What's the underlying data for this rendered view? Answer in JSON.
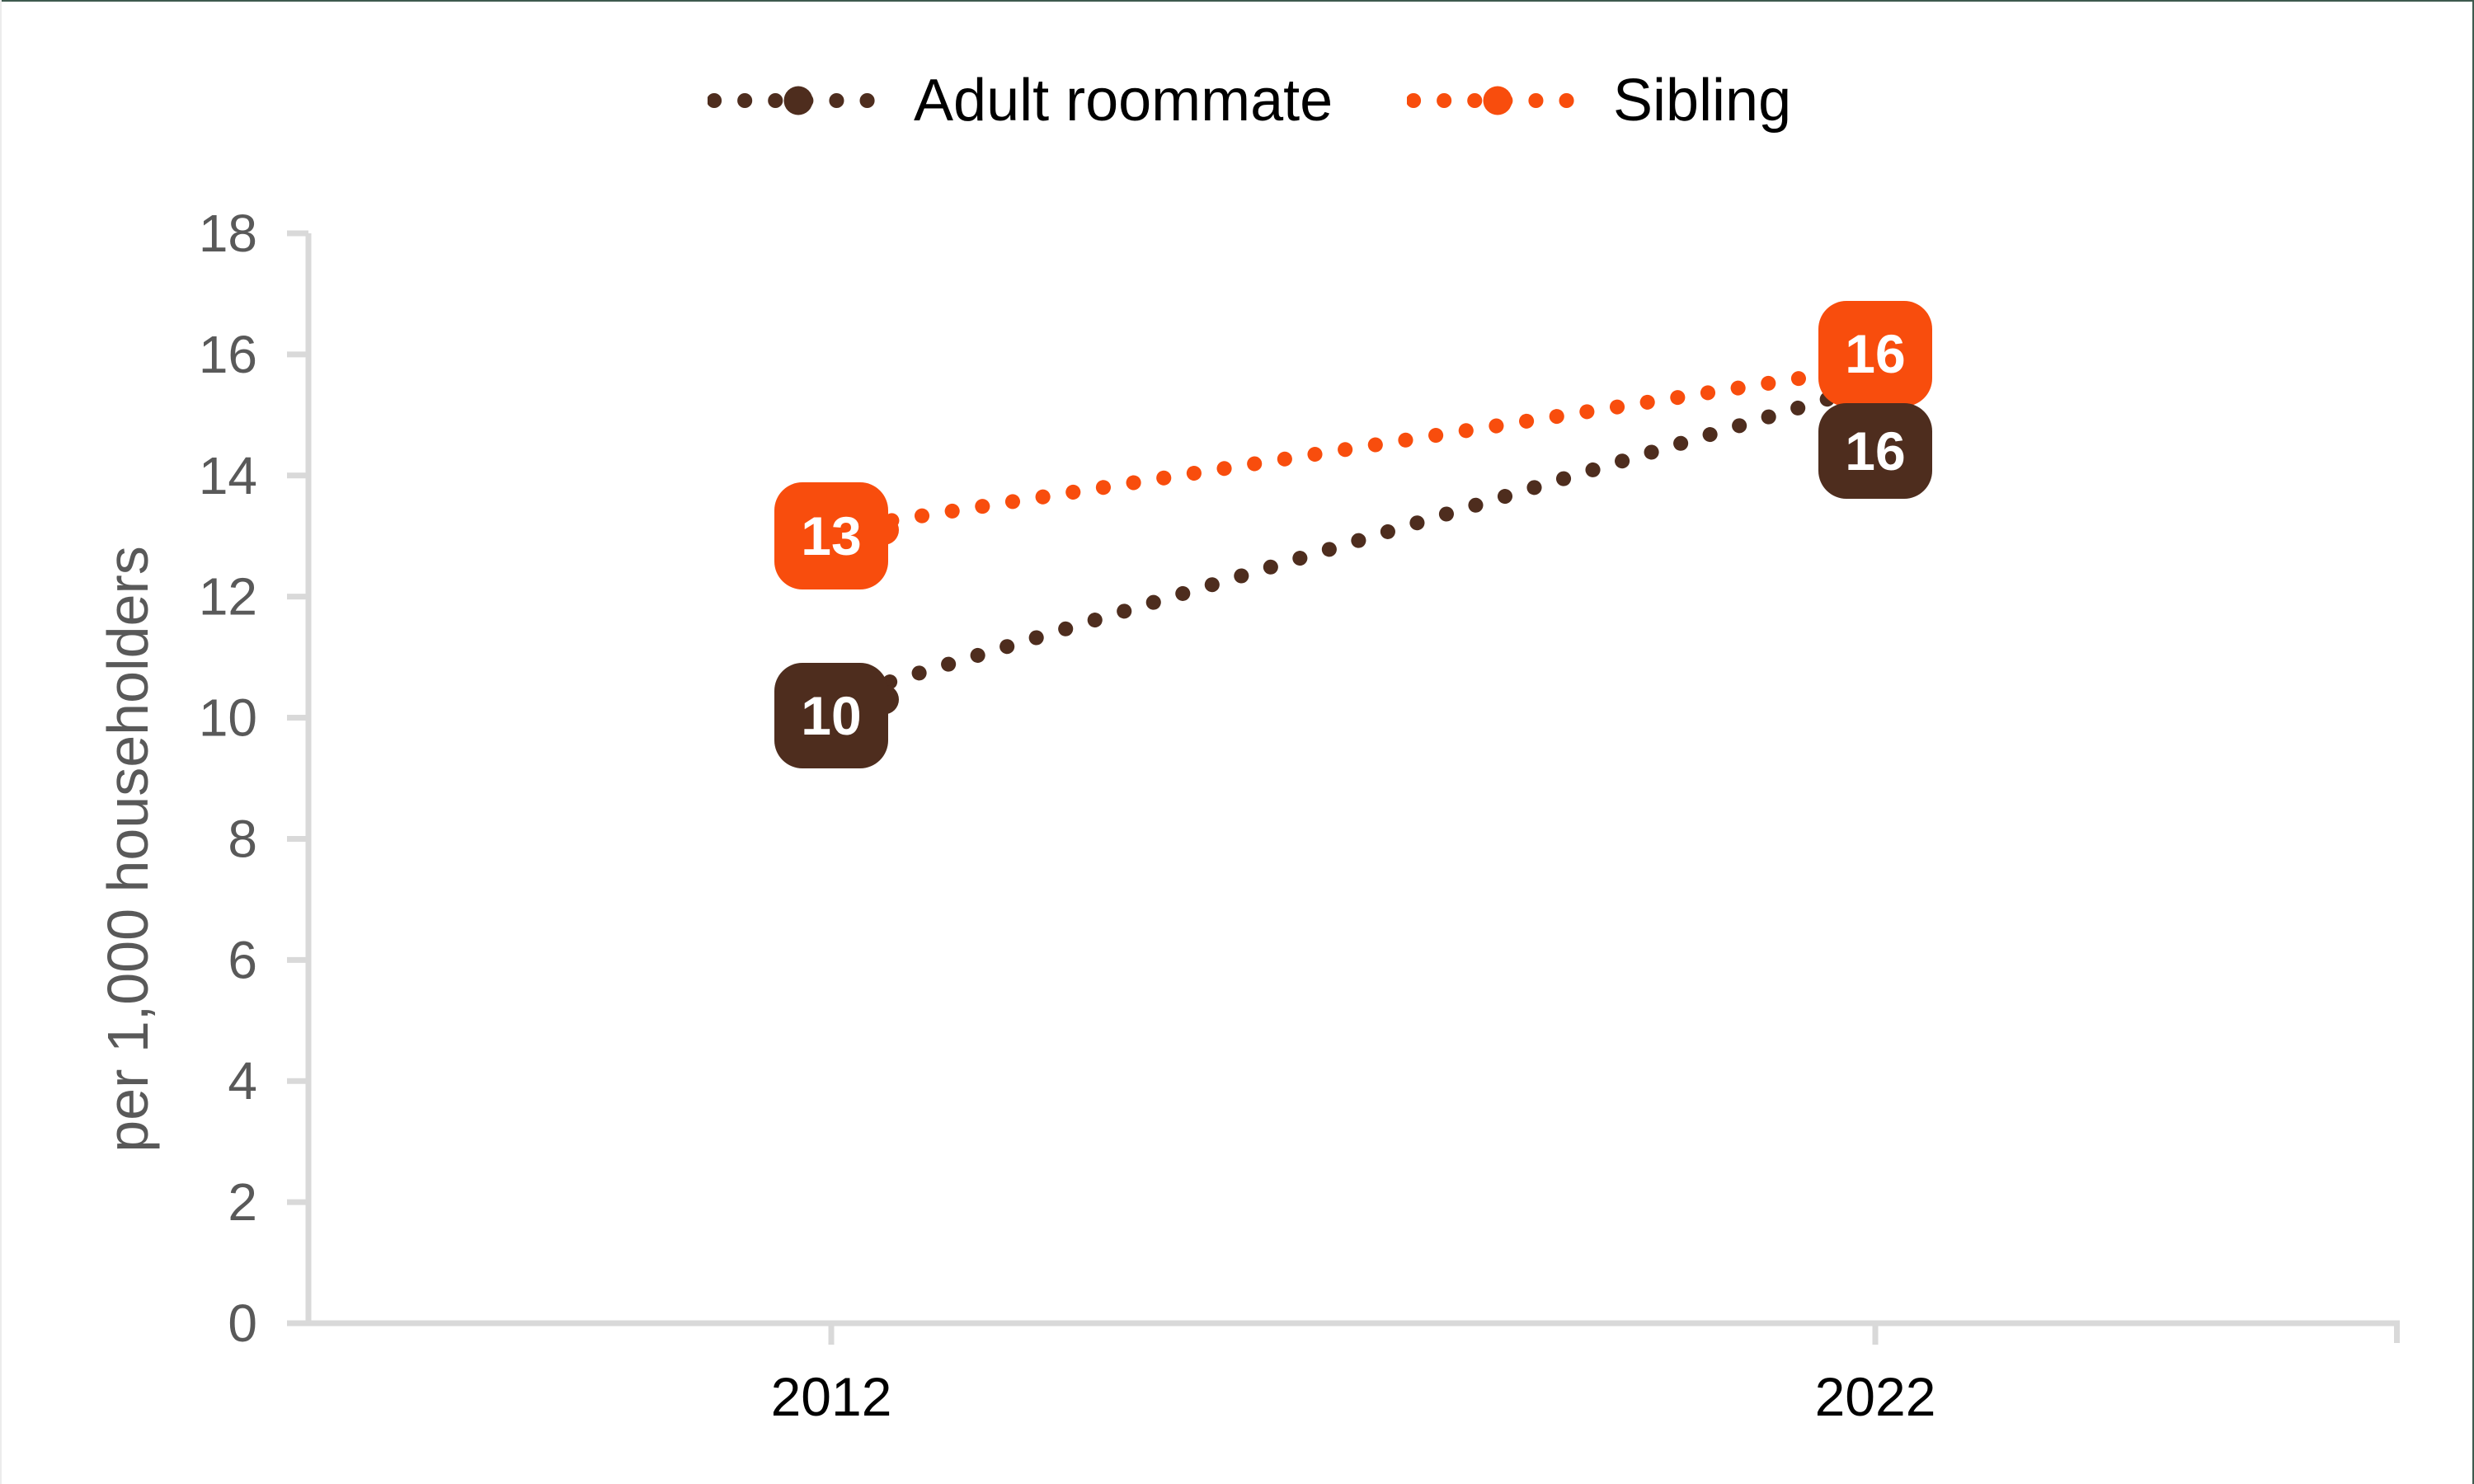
{
  "chart_data": {
    "type": "line",
    "line_style": "dotted",
    "title": "",
    "categories": [
      "2012",
      "2022"
    ],
    "series": [
      {
        "name": "Adult roommate",
        "color": "#4E2D1E",
        "values": [
          10,
          16
        ],
        "values_plotted": [
          10.3,
          15.5
        ],
        "data_labels": [
          "10",
          "16"
        ]
      },
      {
        "name": "Sibling",
        "color": "#F84D0D",
        "values": [
          13,
          16
        ],
        "values_plotted": [
          13.1,
          15.8
        ],
        "data_labels": [
          "13",
          "16"
        ]
      }
    ],
    "xlabel": "",
    "ylabel": "per 1,000 householders",
    "ylim": [
      0,
      18
    ],
    "yticks": [
      0,
      2,
      4,
      6,
      8,
      10,
      12,
      14,
      16,
      18
    ],
    "grid": false,
    "legend_position": "top",
    "axis_color": "#D9D9D9",
    "tick_label_color": "#595959",
    "category_label_color": "#000000",
    "data_label_text_color": "#FFFFFF"
  },
  "frame": {
    "background": "#FFFFFF",
    "top_border_color": "#3E5A4E",
    "right_border_color": "#3E5A4E",
    "left_border_color": "#ECECEC"
  }
}
